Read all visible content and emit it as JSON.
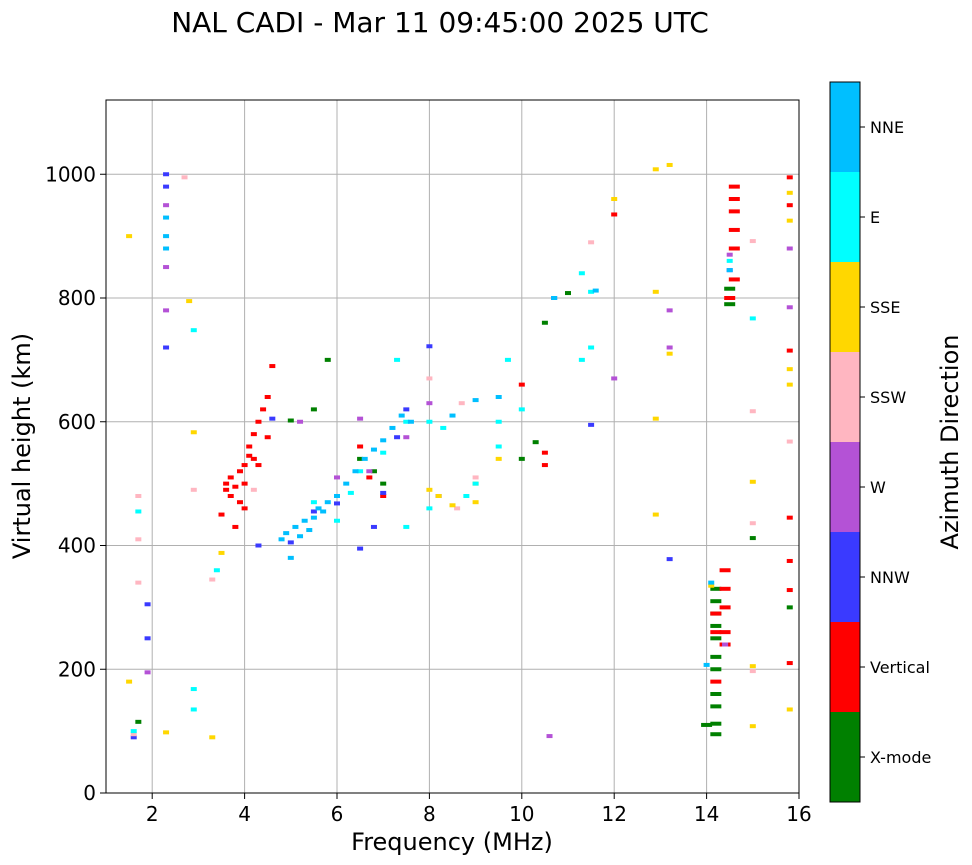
{
  "chart_data": {
    "type": "scatter",
    "title": "NAL CADI - Mar 11 09:45:00 2025 UTC",
    "xlabel": "Frequency (MHz)",
    "ylabel": "Virtual height (km)",
    "xlim": [
      1,
      16
    ],
    "ylim": [
      0,
      1120
    ],
    "x_ticks": [
      2,
      4,
      6,
      8,
      10,
      12,
      14,
      16
    ],
    "y_ticks": [
      0,
      200,
      400,
      600,
      800,
      1000
    ],
    "grid": true,
    "colorbar": {
      "label": "Azimuth Direction",
      "categories": [
        "X-mode",
        "Vertical",
        "NNW",
        "W",
        "SSW",
        "SSE",
        "E",
        "NNE"
      ],
      "colors": [
        "#008000",
        "#ff0000",
        "#3a3aff",
        "#b452d6",
        "#ffb6c1",
        "#ffd700",
        "#00ffff",
        "#00bfff"
      ]
    },
    "series": [
      {
        "name": "X-mode",
        "color": "#008000",
        "points": [
          [
            1.7,
            115
          ],
          [
            5.0,
            602
          ],
          [
            5.5,
            620
          ],
          [
            5.8,
            700
          ],
          [
            6.5,
            540
          ],
          [
            6.8,
            520
          ],
          [
            7.0,
            500
          ],
          [
            10.0,
            540
          ],
          [
            10.3,
            567
          ],
          [
            10.5,
            760
          ],
          [
            11.0,
            808
          ],
          [
            14.0,
            110
          ],
          [
            14.2,
            95
          ],
          [
            14.2,
            112
          ],
          [
            14.2,
            140
          ],
          [
            14.2,
            160
          ],
          [
            14.2,
            200
          ],
          [
            14.2,
            220
          ],
          [
            14.2,
            250
          ],
          [
            14.2,
            270
          ],
          [
            14.2,
            290
          ],
          [
            14.2,
            310
          ],
          [
            14.2,
            330
          ],
          [
            14.5,
            815
          ],
          [
            14.5,
            790
          ],
          [
            15.0,
            412
          ],
          [
            15.8,
            300
          ]
        ]
      },
      {
        "name": "Vertical",
        "color": "#ff0000",
        "points": [
          [
            3.6,
            490
          ],
          [
            3.6,
            500
          ],
          [
            3.7,
            480
          ],
          [
            3.7,
            510
          ],
          [
            3.8,
            495
          ],
          [
            3.9,
            470
          ],
          [
            3.9,
            520
          ],
          [
            4.0,
            460
          ],
          [
            4.0,
            500
          ],
          [
            4.0,
            530
          ],
          [
            4.1,
            545
          ],
          [
            4.1,
            560
          ],
          [
            4.2,
            540
          ],
          [
            4.2,
            580
          ],
          [
            4.3,
            530
          ],
          [
            4.3,
            600
          ],
          [
            4.4,
            620
          ],
          [
            4.5,
            640
          ],
          [
            4.5,
            575
          ],
          [
            4.6,
            690
          ],
          [
            3.5,
            450
          ],
          [
            3.8,
            430
          ],
          [
            6.5,
            560
          ],
          [
            6.7,
            510
          ],
          [
            7.0,
            480
          ],
          [
            10.0,
            660
          ],
          [
            10.5,
            550
          ],
          [
            10.5,
            530
          ],
          [
            12.0,
            935
          ],
          [
            14.2,
            180
          ],
          [
            14.2,
            290
          ],
          [
            14.2,
            260
          ],
          [
            14.4,
            240
          ],
          [
            14.4,
            260
          ],
          [
            14.4,
            300
          ],
          [
            14.4,
            330
          ],
          [
            14.4,
            360
          ],
          [
            14.5,
            800
          ],
          [
            14.6,
            830
          ],
          [
            14.6,
            880
          ],
          [
            14.6,
            910
          ],
          [
            14.6,
            940
          ],
          [
            14.6,
            960
          ],
          [
            14.6,
            980
          ],
          [
            15.8,
            995
          ],
          [
            15.8,
            950
          ],
          [
            15.8,
            715
          ],
          [
            15.8,
            445
          ],
          [
            15.8,
            375
          ],
          [
            15.8,
            328
          ],
          [
            15.8,
            210
          ]
        ]
      },
      {
        "name": "NNW",
        "color": "#3a3aff",
        "points": [
          [
            1.6,
            90
          ],
          [
            1.9,
            305
          ],
          [
            1.9,
            250
          ],
          [
            2.3,
            720
          ],
          [
            2.3,
            1000
          ],
          [
            2.3,
            980
          ],
          [
            4.3,
            400
          ],
          [
            4.6,
            605
          ],
          [
            5.0,
            405
          ],
          [
            5.5,
            455
          ],
          [
            6.0,
            468
          ],
          [
            6.5,
            395
          ],
          [
            6.8,
            430
          ],
          [
            7.0,
            485
          ],
          [
            7.3,
            575
          ],
          [
            7.5,
            620
          ],
          [
            8.0,
            722
          ],
          [
            8.2,
            480
          ],
          [
            10.7,
            800
          ],
          [
            11.5,
            595
          ],
          [
            13.2,
            378
          ],
          [
            14.4,
            240
          ],
          [
            14.5,
            845
          ]
        ]
      },
      {
        "name": "W",
        "color": "#b452d6",
        "points": [
          [
            1.9,
            195
          ],
          [
            2.3,
            780
          ],
          [
            2.3,
            850
          ],
          [
            2.3,
            950
          ],
          [
            5.2,
            600
          ],
          [
            6.0,
            510
          ],
          [
            6.5,
            605
          ],
          [
            6.7,
            520
          ],
          [
            7.5,
            575
          ],
          [
            8.0,
            630
          ],
          [
            10.6,
            92
          ],
          [
            12.0,
            670
          ],
          [
            13.2,
            780
          ],
          [
            13.2,
            720
          ],
          [
            14.4,
            240
          ],
          [
            14.5,
            870
          ],
          [
            15.8,
            880
          ],
          [
            15.8,
            785
          ]
        ]
      },
      {
        "name": "SSW",
        "color": "#ffb6c1",
        "points": [
          [
            1.6,
            95
          ],
          [
            1.7,
            480
          ],
          [
            1.7,
            410
          ],
          [
            1.7,
            340
          ],
          [
            2.7,
            995
          ],
          [
            2.9,
            490
          ],
          [
            3.3,
            345
          ],
          [
            4.2,
            490
          ],
          [
            8.0,
            670
          ],
          [
            8.6,
            460
          ],
          [
            8.7,
            630
          ],
          [
            9.0,
            510
          ],
          [
            11.5,
            890
          ],
          [
            15.0,
            892
          ],
          [
            15.0,
            617
          ],
          [
            15.0,
            436
          ],
          [
            15.0,
            197
          ],
          [
            15.8,
            568
          ]
        ]
      },
      {
        "name": "SSE",
        "color": "#ffd700",
        "points": [
          [
            1.5,
            900
          ],
          [
            1.5,
            180
          ],
          [
            2.3,
            98
          ],
          [
            2.8,
            795
          ],
          [
            2.9,
            583
          ],
          [
            3.3,
            90
          ],
          [
            3.5,
            388
          ],
          [
            8.0,
            490
          ],
          [
            8.2,
            480
          ],
          [
            8.5,
            465
          ],
          [
            9.0,
            470
          ],
          [
            9.0,
            500
          ],
          [
            9.5,
            540
          ],
          [
            12.0,
            960
          ],
          [
            12.9,
            1008
          ],
          [
            12.9,
            810
          ],
          [
            12.9,
            605
          ],
          [
            12.9,
            450
          ],
          [
            13.2,
            1015
          ],
          [
            13.2,
            710
          ],
          [
            14.1,
            335
          ],
          [
            15.0,
            503
          ],
          [
            15.0,
            205
          ],
          [
            15.0,
            108
          ],
          [
            15.8,
            970
          ],
          [
            15.8,
            925
          ],
          [
            15.8,
            685
          ],
          [
            15.8,
            660
          ],
          [
            15.8,
            135
          ]
        ]
      },
      {
        "name": "E",
        "color": "#00ffff",
        "points": [
          [
            1.6,
            100
          ],
          [
            1.7,
            455
          ],
          [
            2.9,
            748
          ],
          [
            2.9,
            168
          ],
          [
            2.9,
            135
          ],
          [
            3.4,
            360
          ],
          [
            5.5,
            470
          ],
          [
            6.0,
            440
          ],
          [
            6.3,
            485
          ],
          [
            6.5,
            520
          ],
          [
            7.0,
            550
          ],
          [
            7.3,
            700
          ],
          [
            7.5,
            600
          ],
          [
            7.5,
            430
          ],
          [
            8.0,
            600
          ],
          [
            8.0,
            460
          ],
          [
            8.3,
            590
          ],
          [
            8.8,
            480
          ],
          [
            9.0,
            500
          ],
          [
            9.5,
            560
          ],
          [
            9.5,
            600
          ],
          [
            9.7,
            700
          ],
          [
            10.0,
            620
          ],
          [
            11.3,
            840
          ],
          [
            11.3,
            700
          ],
          [
            11.5,
            810
          ],
          [
            11.5,
            720
          ],
          [
            14.5,
            860
          ],
          [
            15.0,
            767
          ]
        ]
      },
      {
        "name": "NNE",
        "color": "#00bfff",
        "points": [
          [
            2.3,
            880
          ],
          [
            2.3,
            900
          ],
          [
            2.3,
            930
          ],
          [
            4.8,
            410
          ],
          [
            4.9,
            420
          ],
          [
            5.0,
            380
          ],
          [
            5.1,
            430
          ],
          [
            5.2,
            415
          ],
          [
            5.3,
            440
          ],
          [
            5.4,
            425
          ],
          [
            5.5,
            445
          ],
          [
            5.6,
            460
          ],
          [
            5.7,
            455
          ],
          [
            5.8,
            470
          ],
          [
            6.0,
            480
          ],
          [
            6.2,
            500
          ],
          [
            6.4,
            520
          ],
          [
            6.6,
            540
          ],
          [
            6.8,
            555
          ],
          [
            7.0,
            570
          ],
          [
            7.2,
            590
          ],
          [
            7.4,
            610
          ],
          [
            7.6,
            600
          ],
          [
            8.5,
            610
          ],
          [
            9.0,
            635
          ],
          [
            9.5,
            640
          ],
          [
            10.7,
            800
          ],
          [
            11.6,
            812
          ],
          [
            14.0,
            207
          ],
          [
            14.1,
            340
          ],
          [
            14.5,
            845
          ]
        ]
      }
    ]
  }
}
